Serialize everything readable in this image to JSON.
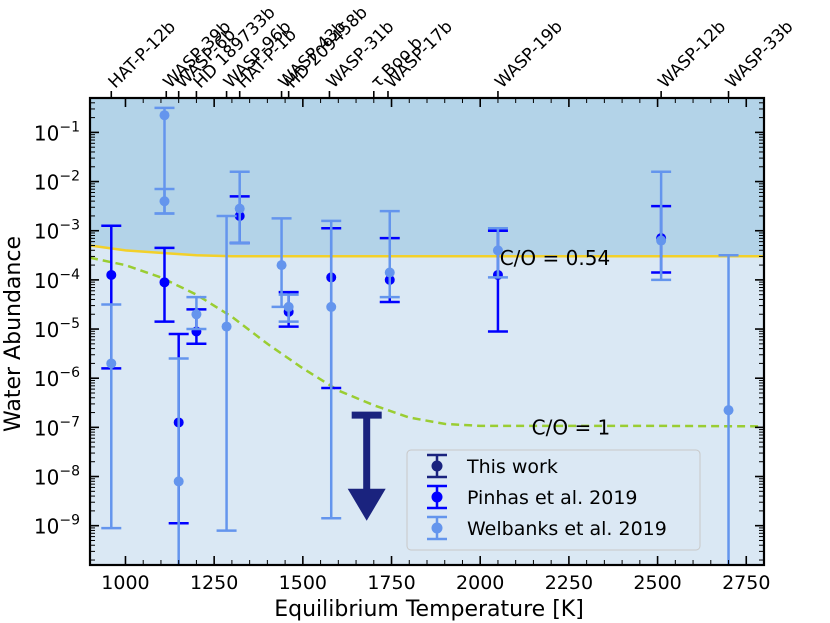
{
  "chart_data": {
    "type": "scatter",
    "xlabel": "Equilibrium Temperature [K]",
    "ylabel": "Water Abundance",
    "xlim": [
      900,
      2800
    ],
    "ylim_log10": [
      -9.8,
      -0.3
    ],
    "yscale": "log",
    "x_ticks": [
      1000,
      1250,
      1500,
      1750,
      2000,
      2250,
      2500,
      2750
    ],
    "x_tick_labels": [
      "1000",
      "1250",
      "1500",
      "1750",
      "2000",
      "2250",
      "2500",
      "2750"
    ],
    "y_ticks": [
      {
        "base": "10",
        "exp": "−9",
        "log": -9
      },
      {
        "base": "10",
        "exp": "−8",
        "log": -8
      },
      {
        "base": "10",
        "exp": "−7",
        "log": -7
      },
      {
        "base": "10",
        "exp": "−6",
        "log": -6
      },
      {
        "base": "10",
        "exp": "−5",
        "log": -5
      },
      {
        "base": "10",
        "exp": "−4",
        "log": -4
      },
      {
        "base": "10",
        "exp": "−3",
        "log": -3
      },
      {
        "base": "10",
        "exp": "−2",
        "log": -2
      },
      {
        "base": "10",
        "exp": "−1",
        "log": -1
      }
    ],
    "planets": [
      {
        "name": "HAT-P-12b",
        "t": 960
      },
      {
        "name": "WASP-39b",
        "t": 1115
      },
      {
        "name": "WASP-6b",
        "t": 1150
      },
      {
        "name": "HD 189733b",
        "t": 1200
      },
      {
        "name": "WASP-96b",
        "t": 1285
      },
      {
        "name": "HAT-P-1b",
        "t": 1322
      },
      {
        "name": "WASP-43b",
        "t": 1440
      },
      {
        "name": "HD 209458b",
        "t": 1460
      },
      {
        "name": "WASP-31b",
        "t": 1575
      },
      {
        "name": "τ Boo b",
        "t": 1700
      },
      {
        "name": "WASP-17b",
        "t": 1740
      },
      {
        "name": "WASP-19b",
        "t": 2050
      },
      {
        "name": "WASP-12b",
        "t": 2510
      },
      {
        "name": "WASP-33b",
        "t": 2700
      }
    ],
    "regions": [
      {
        "name": "above C/O = 0.54",
        "color": "#b3d3e8"
      },
      {
        "name": "below C/O = 0.54",
        "color": "#dae8f4"
      }
    ],
    "curves": [
      {
        "name": "C/O = 0.54",
        "color": "#f2d02a",
        "style": "solid",
        "points": [
          [
            900,
            -3.3
          ],
          [
            1000,
            -3.4
          ],
          [
            1100,
            -3.45
          ],
          [
            1200,
            -3.5
          ],
          [
            1300,
            -3.52
          ],
          [
            1500,
            -3.52
          ],
          [
            2000,
            -3.52
          ],
          [
            2500,
            -3.52
          ],
          [
            2800,
            -3.52
          ]
        ]
      },
      {
        "name": "C/O = 1",
        "color": "#9acd32",
        "style": "dashed",
        "points": [
          [
            900,
            -3.55
          ],
          [
            1000,
            -3.7
          ],
          [
            1100,
            -3.95
          ],
          [
            1200,
            -4.3
          ],
          [
            1300,
            -4.75
          ],
          [
            1400,
            -5.3
          ],
          [
            1500,
            -5.8
          ],
          [
            1600,
            -6.25
          ],
          [
            1700,
            -6.55
          ],
          [
            1800,
            -6.8
          ],
          [
            1900,
            -6.93
          ],
          [
            2000,
            -6.97
          ],
          [
            2200,
            -6.97
          ],
          [
            2500,
            -6.97
          ],
          [
            2800,
            -6.98
          ]
        ]
      }
    ],
    "curve_labels": [
      {
        "text": "C/O = 0.54",
        "x": 2055,
        "y": -3.55
      },
      {
        "text": "C/O = 1",
        "x": 2145,
        "y": -7.0
      }
    ],
    "series": [
      {
        "name": "Pinhas et al. 2019",
        "color": "#0000ff",
        "marker_radius": 5,
        "points": [
          {
            "x": 960,
            "y": -3.9,
            "lo": -5.8,
            "hi": -2.9
          },
          {
            "x": 1110,
            "y": -4.05,
            "lo": -4.85,
            "hi": -3.35
          },
          {
            "x": 1150,
            "y": -6.9,
            "lo": -8.95,
            "hi": -5.1
          },
          {
            "x": 1200,
            "y": -5.05,
            "lo": -5.3,
            "hi": -4.6
          },
          {
            "x": 1322,
            "y": -2.7,
            "lo": -3.25,
            "hi": -2.3
          },
          {
            "x": 1460,
            "y": -4.65,
            "lo": -4.95,
            "hi": -4.25
          },
          {
            "x": 1580,
            "y": -3.95,
            "lo": -6.2,
            "hi": -2.95
          },
          {
            "x": 1745,
            "y": -4.0,
            "lo": -4.45,
            "hi": -3.15
          },
          {
            "x": 2050,
            "y": -3.9,
            "lo": -5.05,
            "hi": -3.0
          },
          {
            "x": 2510,
            "y": -3.15,
            "lo": -3.85,
            "hi": -2.5
          }
        ]
      },
      {
        "name": "Welbanks et al. 2019",
        "color": "#6495ed",
        "marker_radius": 5,
        "points": [
          {
            "x": 960,
            "y": -5.7,
            "lo": -9.05,
            "hi": -4.5
          },
          {
            "x": 1110,
            "y": -0.65,
            "lo": -2.65,
            "hi": -0.5
          },
          {
            "x": 1110,
            "y": -2.4,
            "lo": -2.65,
            "hi": -2.15
          },
          {
            "x": 1150,
            "y": -8.1,
            "lo": -10.0,
            "hi": -5.6
          },
          {
            "x": 1200,
            "y": -4.7,
            "lo": -5.0,
            "hi": -4.35
          },
          {
            "x": 1285,
            "y": -4.95,
            "lo": -9.1,
            "hi": -2.7
          },
          {
            "x": 1322,
            "y": -2.55,
            "lo": -3.25,
            "hi": -1.8
          },
          {
            "x": 1440,
            "y": -3.7,
            "lo": -4.55,
            "hi": -2.75
          },
          {
            "x": 1460,
            "y": -4.55,
            "lo": -4.85,
            "hi": -4.3
          },
          {
            "x": 1580,
            "y": -4.55,
            "lo": -8.85,
            "hi": -2.8
          },
          {
            "x": 1745,
            "y": -3.85,
            "lo": -4.35,
            "hi": -2.6
          },
          {
            "x": 2050,
            "y": -3.4,
            "lo": -3.95,
            "hi": -2.95
          },
          {
            "x": 2510,
            "y": -3.2,
            "lo": -4.0,
            "hi": -1.8
          },
          {
            "x": 2700,
            "y": -6.65,
            "lo": -10.0,
            "hi": -3.5
          }
        ]
      },
      {
        "name": "This work",
        "color": "#1a237e",
        "marker_radius": 6,
        "upper_limit": {
          "x": 1680,
          "top": -6.75,
          "bottom": -8.9
        },
        "points": []
      }
    ],
    "legend": {
      "placement": "lower-right",
      "entries": [
        {
          "label": "This work",
          "color": "#1a237e"
        },
        {
          "label": "Pinhas et al. 2019",
          "color": "#0000ff"
        },
        {
          "label": "Welbanks et al. 2019",
          "color": "#6495ed"
        }
      ]
    }
  }
}
